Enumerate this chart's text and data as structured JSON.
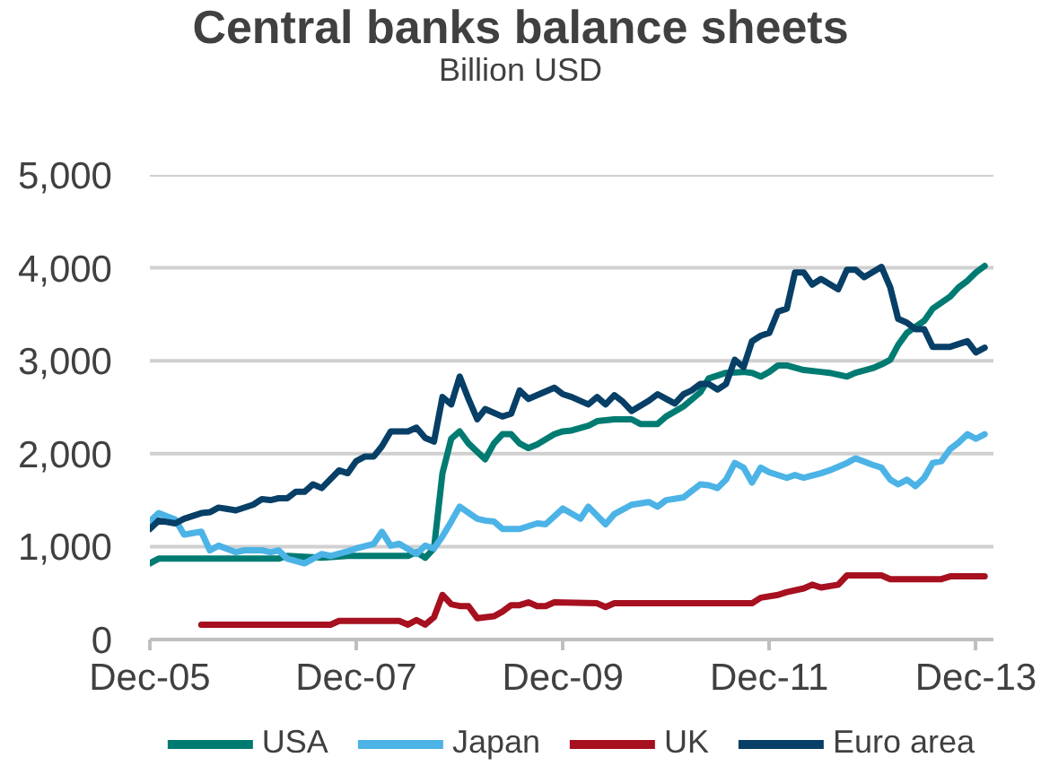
{
  "chart_data": {
    "type": "line",
    "title": "Central banks balance sheets",
    "subtitle": "Billion USD",
    "xlim": [
      "2005-12",
      "2014-02"
    ],
    "xticks": [
      {
        "value": "2005-12",
        "label": "Dec-05"
      },
      {
        "value": "2007-12",
        "label": "Dec-07"
      },
      {
        "value": "2009-12",
        "label": "Dec-09"
      },
      {
        "value": "2011-12",
        "label": "Dec-11"
      },
      {
        "value": "2013-12",
        "label": "Dec-13"
      }
    ],
    "ylim": [
      0,
      5000
    ],
    "yticks": [
      0,
      {
        "value": 1000,
        "label": "1,000"
      },
      {
        "value": 2000,
        "label": "2,000"
      },
      {
        "value": 3000,
        "label": "3,000"
      },
      {
        "value": 4000,
        "label": "4,000"
      },
      {
        "value": 5000,
        "label": "5,000"
      }
    ],
    "grid": "y",
    "legend": "bottom",
    "line_style": "solid",
    "series": [
      {
        "name": "USA",
        "color": "#007b72",
        "x": [
          "2005-12",
          "2006-01",
          "2007-03",
          "2007-04",
          "2007-08",
          "2007-11",
          "2008-06",
          "2008-07",
          "2008-08",
          "2008-09",
          "2008-10",
          "2008-11",
          "2008-12",
          "2009-01",
          "2009-03",
          "2009-04",
          "2009-05",
          "2009-06",
          "2009-07",
          "2009-08",
          "2009-09",
          "2009-11",
          "2009-12",
          "2010-01",
          "2010-03",
          "2010-04",
          "2010-06",
          "2010-08",
          "2010-09",
          "2010-11",
          "2010-12",
          "2011-02",
          "2011-04",
          "2011-05",
          "2011-07",
          "2011-09",
          "2011-10",
          "2011-11",
          "2011-12",
          "2012-01",
          "2012-02",
          "2012-04",
          "2012-06",
          "2012-07",
          "2012-09",
          "2012-10",
          "2012-12",
          "2013-01",
          "2013-02",
          "2013-03",
          "2013-04",
          "2013-06",
          "2013-07",
          "2013-09",
          "2013-10",
          "2013-11",
          "2013-12",
          "2014-01"
        ],
        "values": [
          820,
          870,
          870,
          900,
          880,
          900,
          900,
          940,
          880,
          980,
          1790,
          2160,
          2240,
          2110,
          1940,
          2110,
          2210,
          2210,
          2110,
          2060,
          2100,
          2210,
          2240,
          2250,
          2300,
          2350,
          2370,
          2370,
          2320,
          2320,
          2400,
          2510,
          2660,
          2810,
          2870,
          2880,
          2870,
          2830,
          2880,
          2950,
          2950,
          2900,
          2880,
          2870,
          2830,
          2870,
          2920,
          2960,
          3010,
          3170,
          3300,
          3430,
          3560,
          3690,
          3790,
          3860,
          3950,
          4020
        ]
      },
      {
        "name": "Japan",
        "color": "#4cb3e6",
        "x": [
          "2005-12",
          "2006-01",
          "2006-03",
          "2006-04",
          "2006-06",
          "2006-07",
          "2006-08",
          "2006-10",
          "2006-11",
          "2007-01",
          "2007-02",
          "2007-03",
          "2007-04",
          "2007-06",
          "2007-08",
          "2007-09",
          "2007-11",
          "2007-12",
          "2008-02",
          "2008-03",
          "2008-04",
          "2008-05",
          "2008-07",
          "2008-08",
          "2008-09",
          "2008-10",
          "2008-11",
          "2008-12",
          "2009-02",
          "2009-03",
          "2009-04",
          "2009-05",
          "2009-07",
          "2009-09",
          "2009-10",
          "2009-12",
          "2010-02",
          "2010-03",
          "2010-05",
          "2010-06",
          "2010-08",
          "2010-10",
          "2010-11",
          "2010-12",
          "2011-02",
          "2011-04",
          "2011-05",
          "2011-06",
          "2011-07",
          "2011-08",
          "2011-09",
          "2011-10",
          "2011-11",
          "2011-12",
          "2012-02",
          "2012-03",
          "2012-04",
          "2012-06",
          "2012-07",
          "2012-09",
          "2012-10",
          "2012-12",
          "2013-01",
          "2013-02",
          "2013-03",
          "2013-04",
          "2013-05",
          "2013-06",
          "2013-07",
          "2013-08",
          "2013-09",
          "2013-10",
          "2013-11",
          "2013-12",
          "2014-01"
        ],
        "values": [
          1270,
          1360,
          1290,
          1130,
          1160,
          960,
          1010,
          940,
          960,
          960,
          940,
          960,
          870,
          820,
          920,
          900,
          950,
          980,
          1030,
          1160,
          1010,
          1030,
          920,
          1010,
          980,
          1110,
          1270,
          1430,
          1300,
          1280,
          1270,
          1190,
          1190,
          1250,
          1240,
          1410,
          1300,
          1430,
          1240,
          1350,
          1450,
          1480,
          1430,
          1500,
          1530,
          1670,
          1660,
          1630,
          1720,
          1900,
          1850,
          1690,
          1850,
          1800,
          1740,
          1770,
          1740,
          1790,
          1820,
          1900,
          1950,
          1880,
          1850,
          1720,
          1670,
          1720,
          1650,
          1740,
          1900,
          1920,
          2050,
          2120,
          2210,
          2160,
          2210
        ]
      },
      {
        "name": "UK",
        "color": "#a6101f",
        "x": [
          "2006-06",
          "2007-09",
          "2007-10",
          "2008-05",
          "2008-06",
          "2008-07",
          "2008-08",
          "2008-09",
          "2008-10",
          "2008-11",
          "2008-12",
          "2009-01",
          "2009-02",
          "2009-04",
          "2009-05",
          "2009-06",
          "2009-07",
          "2009-08",
          "2009-09",
          "2009-10",
          "2009-11",
          "2010-04",
          "2010-05",
          "2010-06",
          "2011-10",
          "2011-11",
          "2012-01",
          "2012-02",
          "2012-04",
          "2012-05",
          "2012-06",
          "2012-08",
          "2012-09",
          "2013-01",
          "2013-02",
          "2013-08",
          "2013-09",
          "2014-01"
        ],
        "values": [
          160,
          160,
          200,
          200,
          160,
          210,
          160,
          240,
          480,
          380,
          360,
          360,
          230,
          250,
          300,
          370,
          370,
          400,
          360,
          360,
          400,
          390,
          350,
          390,
          390,
          450,
          480,
          510,
          550,
          590,
          560,
          590,
          690,
          690,
          650,
          650,
          680,
          680
        ]
      },
      {
        "name": "Euro area",
        "color": "#073f66",
        "x": [
          "2005-12",
          "2006-01",
          "2006-03",
          "2006-04",
          "2006-06",
          "2006-07",
          "2006-08",
          "2006-10",
          "2006-12",
          "2007-01",
          "2007-02",
          "2007-03",
          "2007-04",
          "2007-05",
          "2007-06",
          "2007-07",
          "2007-08",
          "2007-10",
          "2007-11",
          "2007-12",
          "2008-01",
          "2008-02",
          "2008-03",
          "2008-04",
          "2008-06",
          "2008-07",
          "2008-08",
          "2008-09",
          "2008-10",
          "2008-11",
          "2008-12",
          "2009-01",
          "2009-02",
          "2009-03",
          "2009-05",
          "2009-06",
          "2009-07",
          "2009-08",
          "2009-09",
          "2009-11",
          "2009-12",
          "2010-01",
          "2010-03",
          "2010-04",
          "2010-05",
          "2010-06",
          "2010-07",
          "2010-08",
          "2010-10",
          "2010-11",
          "2010-12",
          "2011-01",
          "2011-02",
          "2011-03",
          "2011-04",
          "2011-05",
          "2011-06",
          "2011-07",
          "2011-08",
          "2011-09",
          "2011-10",
          "2011-11",
          "2011-12",
          "2012-01",
          "2012-02",
          "2012-03",
          "2012-04",
          "2012-05",
          "2012-06",
          "2012-08",
          "2012-09",
          "2012-10",
          "2012-11",
          "2013-01",
          "2013-02",
          "2013-03",
          "2013-04",
          "2013-05",
          "2013-06",
          "2013-07",
          "2013-09",
          "2013-11",
          "2013-12",
          "2014-01"
        ],
        "values": [
          1190,
          1280,
          1250,
          1300,
          1360,
          1370,
          1420,
          1390,
          1450,
          1510,
          1500,
          1520,
          1520,
          1590,
          1590,
          1670,
          1630,
          1820,
          1790,
          1920,
          1970,
          1970,
          2080,
          2240,
          2240,
          2280,
          2170,
          2130,
          2610,
          2530,
          2830,
          2590,
          2370,
          2480,
          2400,
          2430,
          2680,
          2590,
          2630,
          2710,
          2640,
          2610,
          2530,
          2610,
          2530,
          2630,
          2560,
          2460,
          2570,
          2640,
          2590,
          2540,
          2640,
          2680,
          2750,
          2750,
          2690,
          2750,
          3010,
          2930,
          3210,
          3270,
          3300,
          3530,
          3560,
          3950,
          3950,
          3820,
          3880,
          3770,
          3980,
          3980,
          3900,
          4010,
          3790,
          3450,
          3410,
          3340,
          3340,
          3150,
          3150,
          3210,
          3090,
          3140
        ]
      }
    ]
  }
}
